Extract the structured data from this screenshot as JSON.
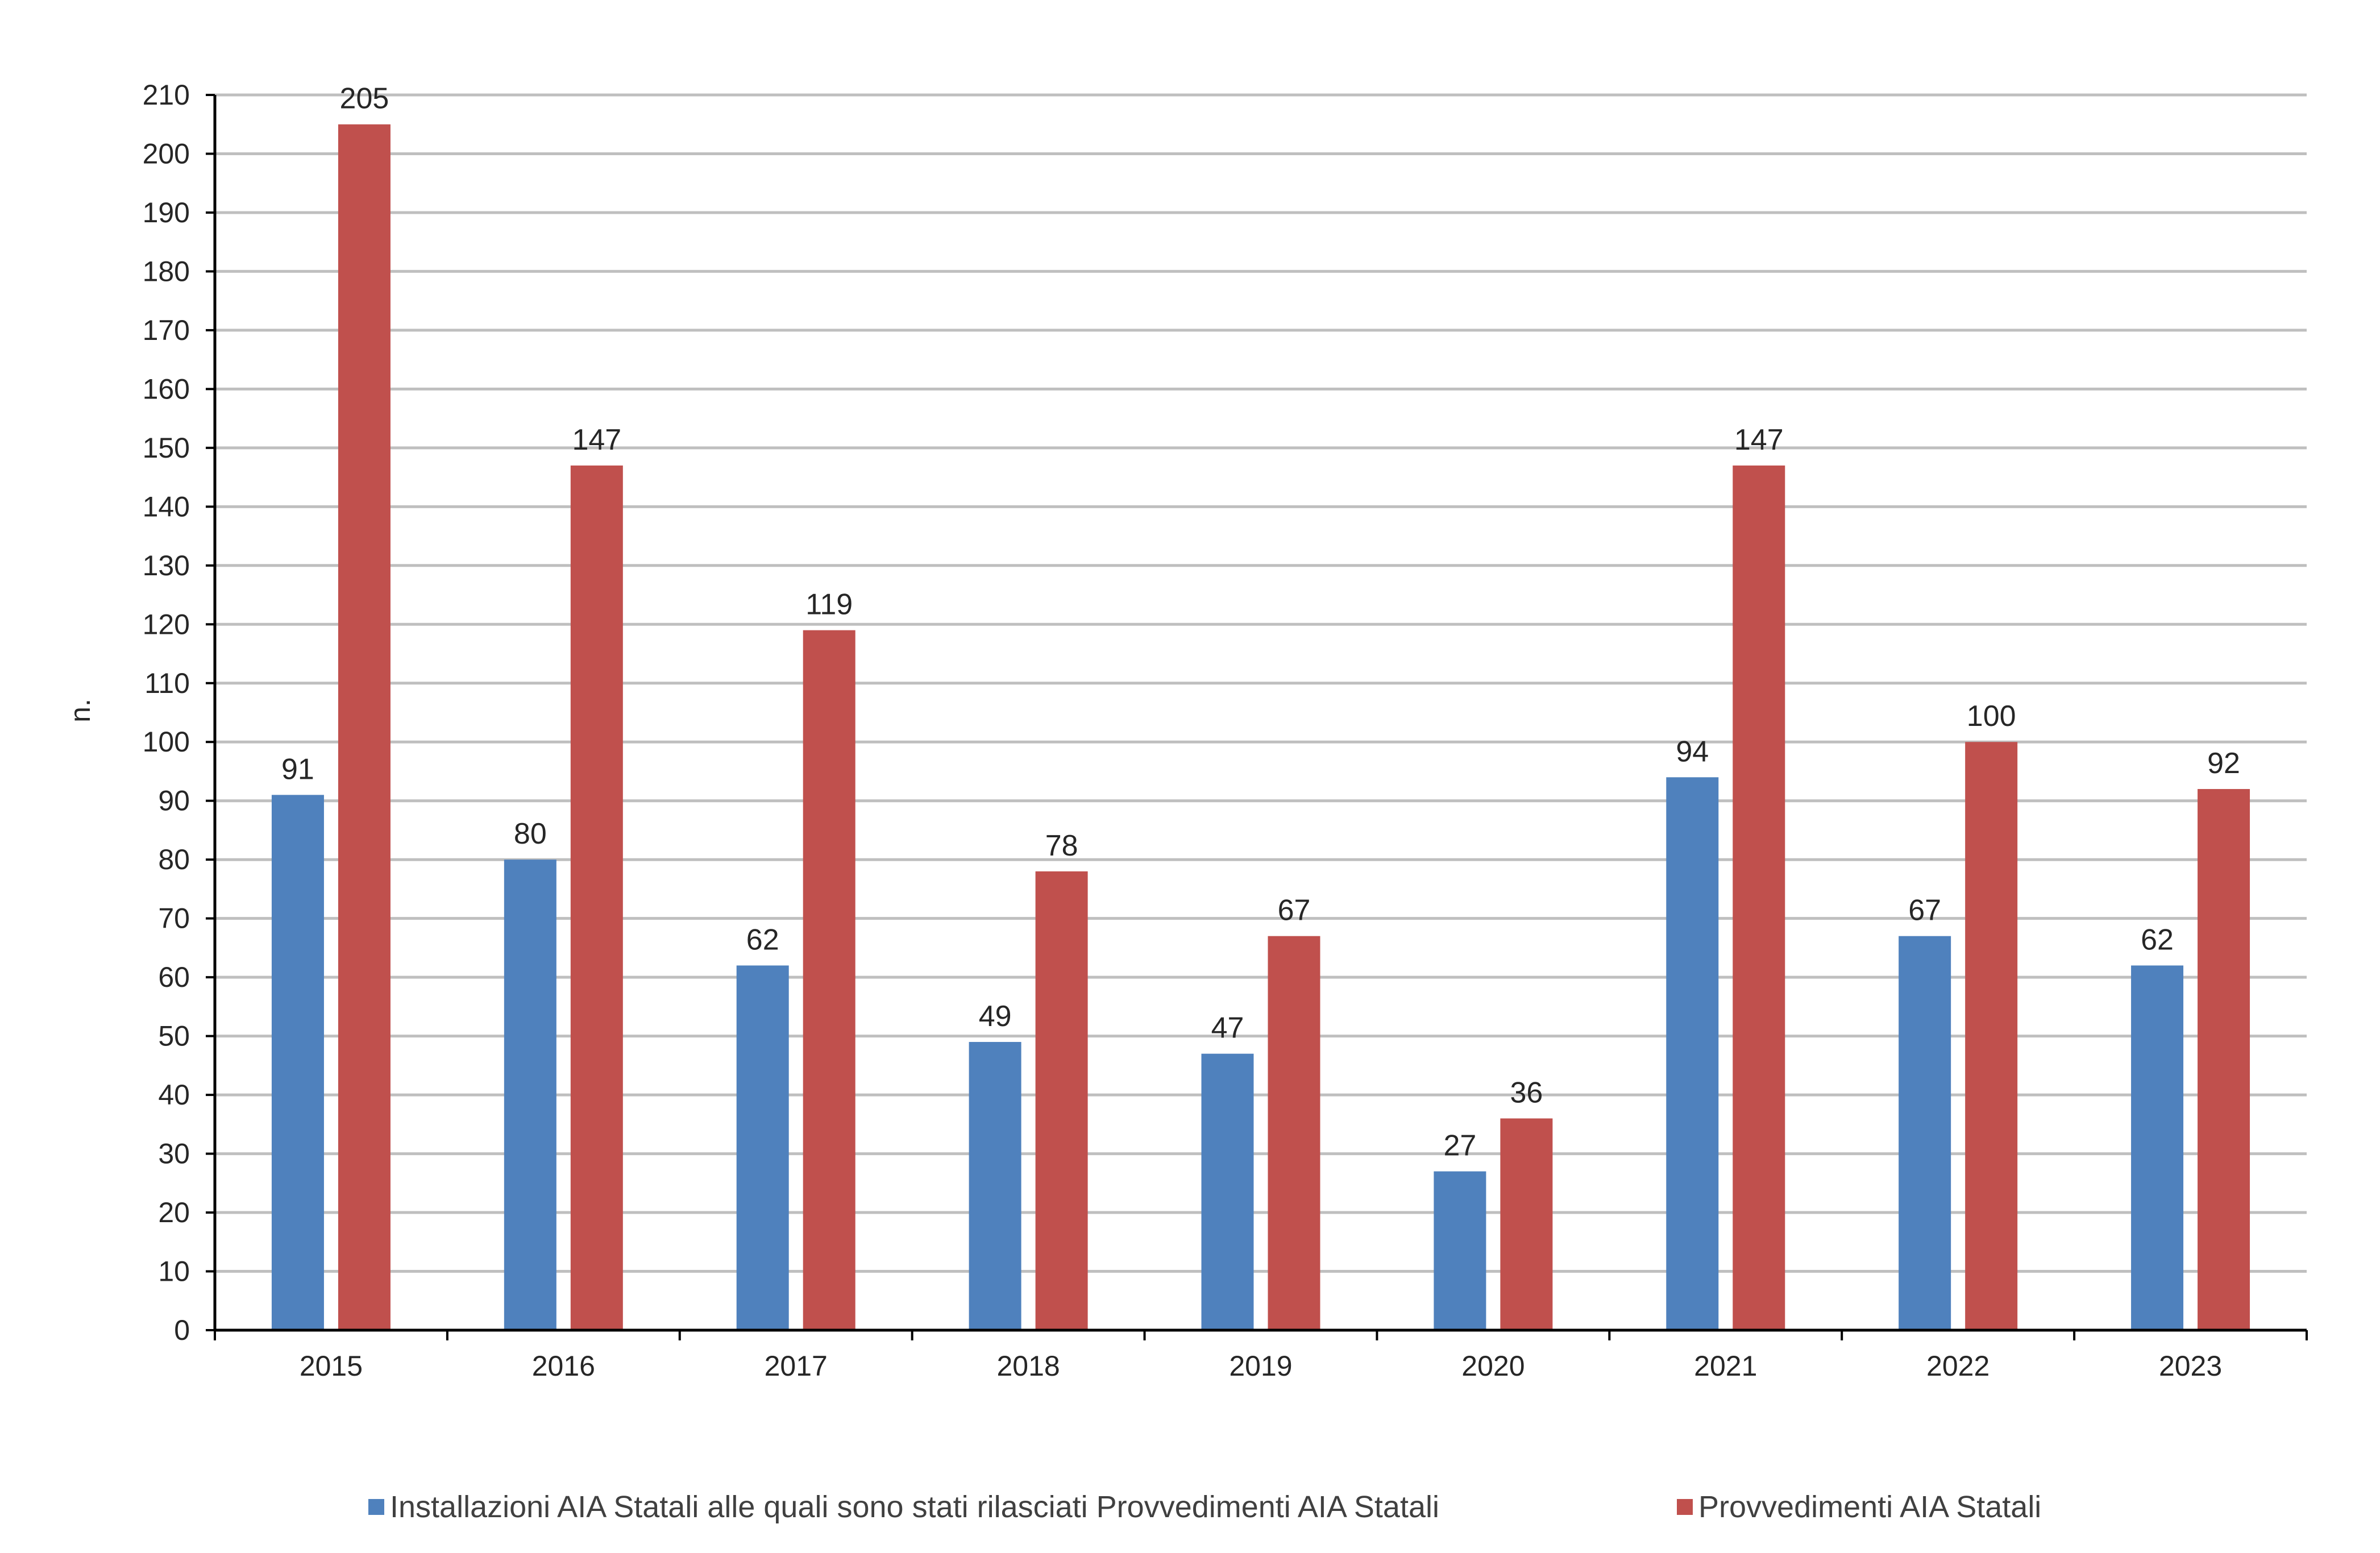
{
  "chart_data": {
    "type": "bar",
    "title": "",
    "xlabel": "",
    "ylabel": "n.",
    "ylim": [
      0,
      210
    ],
    "ytick_step": 10,
    "grid": true,
    "legend_position": "bottom",
    "categories": [
      "2015",
      "2016",
      "2017",
      "2018",
      "2019",
      "2020",
      "2021",
      "2022",
      "2023"
    ],
    "series": [
      {
        "name": "Installazioni AIA Statali alle quali sono stati rilasciati Provvedimenti AIA Statali",
        "color": "#4F81BD",
        "values": [
          91,
          80,
          62,
          49,
          47,
          27,
          94,
          67,
          62
        ]
      },
      {
        "name": "Provvedimenti AIA Statali",
        "color": "#C0504D",
        "values": [
          205,
          147,
          119,
          78,
          67,
          36,
          147,
          100,
          92
        ]
      }
    ]
  }
}
